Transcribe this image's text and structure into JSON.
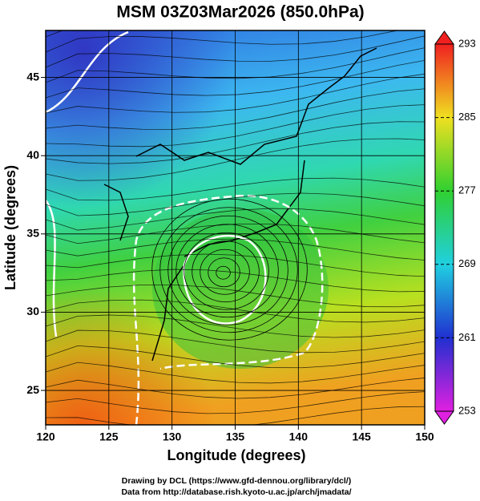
{
  "chart_data": {
    "type": "map",
    "title": "MSM 03Z03Mar2026 (850.0hPa)",
    "x_label": "Longitude (degrees)",
    "y_label": "Latitude  (degrees)",
    "xlim": [
      120,
      150
    ],
    "ylim": [
      22.8,
      48
    ],
    "xticks": [
      120,
      125,
      130,
      135,
      140,
      145,
      150
    ],
    "yticks": [
      25,
      30,
      35,
      40,
      45
    ],
    "grid": true,
    "colorbar": {
      "lim": [
        253,
        293
      ],
      "ticks": [
        253,
        261,
        269,
        277,
        285,
        293
      ],
      "colors": [
        "#e020e0",
        "#2030d0",
        "#20d0e0",
        "#30d030",
        "#f0e020",
        "#f02020"
      ]
    },
    "credits": [
      "Drawing by DCL (https://www.gfd-dennou.org/library/dcl/)",
      "Data from http://database.rish.kyoto-u.ac.jp/arch/jmadata/"
    ]
  }
}
